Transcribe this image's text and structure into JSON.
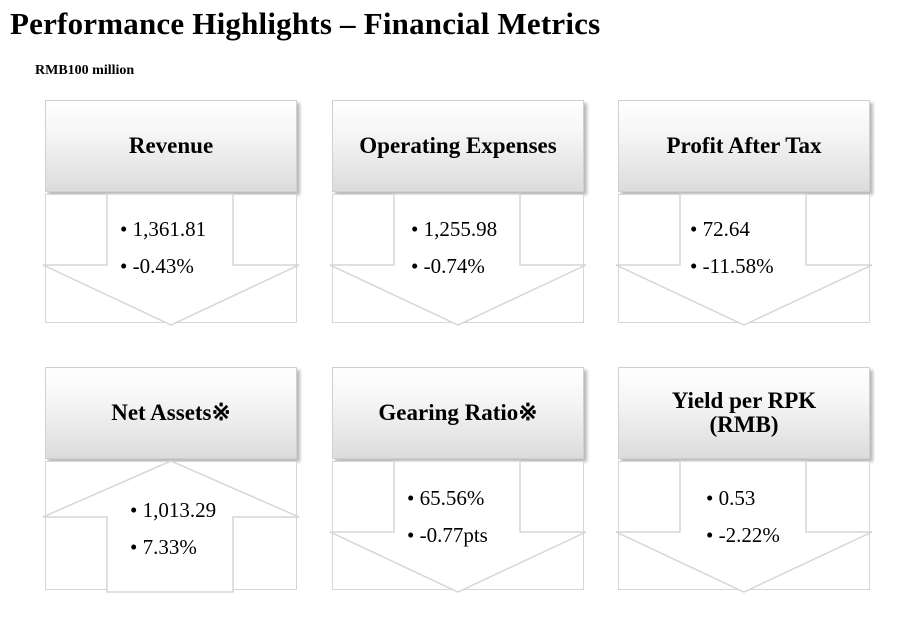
{
  "header": {
    "title": "Performance Highlights – Financial Metrics",
    "unit": "RMB100 million"
  },
  "cards": [
    {
      "label": "Revenue",
      "value": "• 1,361.81",
      "change": "• -0.43%",
      "direction": "down"
    },
    {
      "label": "Operating Expenses",
      "value": "• 1,255.98",
      "change": "• -0.74%",
      "direction": "down"
    },
    {
      "label": "Profit After Tax",
      "value": "• 72.64",
      "change": "• -11.58%",
      "direction": "down"
    },
    {
      "label": "Net Assets※",
      "value": "• 1,013.29",
      "change": "• 7.33%",
      "direction": "up"
    },
    {
      "label": "Gearing Ratio※",
      "value": "• 65.56%",
      "change": "• -0.77pts",
      "direction": "down"
    },
    {
      "label": "Yield per RPK\n(RMB)",
      "value": "• 0.53",
      "change": "• -2.22%",
      "direction": "down"
    }
  ]
}
